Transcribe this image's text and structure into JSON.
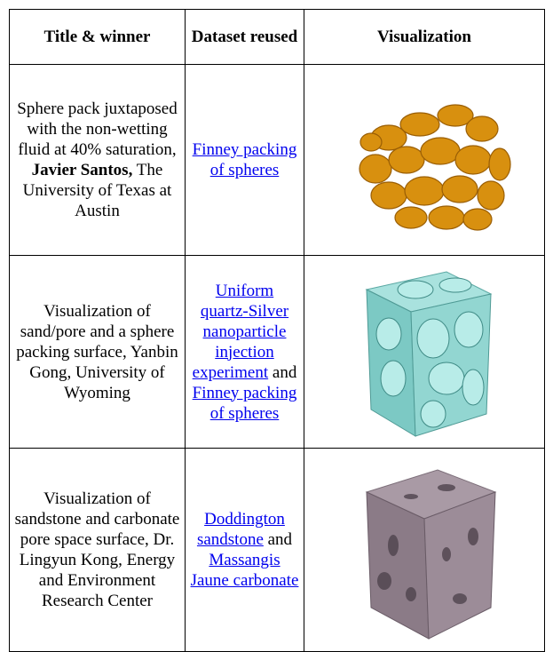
{
  "header": {
    "title": "Title & winner",
    "dataset": "Dataset reused",
    "visualization": "Visualization"
  },
  "rows": [
    {
      "title_before": "Sphere pack juxtaposed with the non-wetting fluid at 40% saturation,",
      "winner": "Javier Santos,",
      "title_after": "The University of Texas at Austin",
      "dataset": [
        {
          "link": "Finney packing of spheres"
        }
      ]
    },
    {
      "title": "Visualization of sand/pore and a sphere packing surface, Yanbin Gong, University of Wyoming",
      "dataset": [
        {
          "link": "Uniform quartz-Silver nanoparticle injection experiment"
        },
        {
          "text": "and"
        },
        {
          "link": "Finney packing of spheres"
        }
      ]
    },
    {
      "title": "Visualization of sandstone and carbonate pore space surface, Dr. Lingyun Kong, Energy and Environment Research Center",
      "dataset": [
        {
          "link": "Doddington sandstone"
        },
        {
          "text": "and"
        },
        {
          "link": "Massangis Jaune carbonate"
        }
      ]
    }
  ]
}
